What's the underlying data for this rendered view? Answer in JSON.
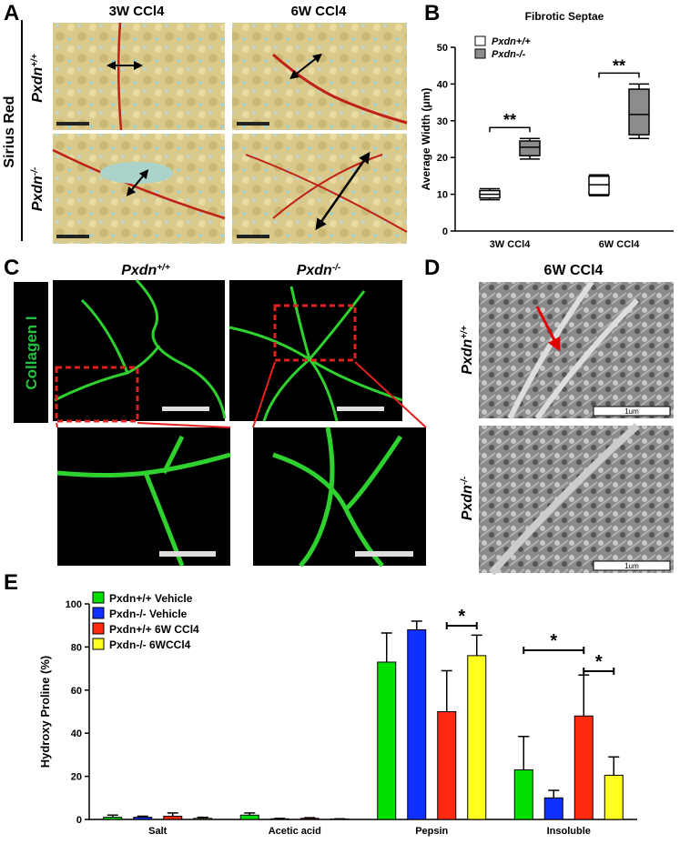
{
  "figure": {
    "panel_labels": [
      "A",
      "B",
      "C",
      "D",
      "E"
    ],
    "a": {
      "col1": "3W CCl4",
      "col2": "6W CCl4",
      "stain": "Sirius Red",
      "row1": {
        "base": "Pxdn",
        "sup": "+/+"
      },
      "row2": {
        "base": "Pxdn",
        "sup": "-/-"
      }
    },
    "c": {
      "stain": "Collagen I",
      "col1": {
        "base": "Pxdn",
        "sup": "+/+"
      },
      "col2": {
        "base": "Pxdn",
        "sup": "-/-"
      }
    },
    "d": {
      "title": "6W CCl4",
      "row1": {
        "base": "Pxdn",
        "sup": "+/+"
      },
      "row2": {
        "base": "Pxdn",
        "sup": "-/-"
      },
      "scale1": "1um",
      "scale2": "1um"
    }
  },
  "chart_data": [
    {
      "type": "box",
      "title": "Fibrotic Septae",
      "y_label": "Average Width (μm)",
      "categories": [
        "3W CCl4",
        "6W CCl4"
      ],
      "series": [
        {
          "name": "Pxdn+/+",
          "color": "#ffffff",
          "values": [
            {
              "min": 8.5,
              "q1": 9,
              "median": 10,
              "q3": 11,
              "max": 11.5
            },
            {
              "min": 9.6,
              "q1": 9.9,
              "median": 12.6,
              "q3": 14.9,
              "max": 15.3
            }
          ]
        },
        {
          "name": "Pxdn-/-",
          "color": "#8c8c8c",
          "values": [
            {
              "min": 19.6,
              "q1": 20.5,
              "median": 22.8,
              "q3": 24.5,
              "max": 25.2
            },
            {
              "min": 25.2,
              "q1": 26.2,
              "median": 31.7,
              "q3": 38.6,
              "max": 40
            }
          ]
        }
      ],
      "annotations": [
        "**",
        "**"
      ],
      "ylim": [
        0,
        50
      ],
      "yticks": [
        0,
        10,
        20,
        30,
        40,
        50
      ]
    },
    {
      "type": "bar",
      "y_label": "Hydroxy Proline (%)",
      "categories": [
        "Salt",
        "Acetic acid",
        "Pepsin",
        "Insoluble"
      ],
      "series": [
        {
          "name": "Pxdn+/+ Vehicle",
          "color": "#00e000",
          "values": [
            1,
            2,
            73,
            23
          ],
          "errors": [
            1,
            1,
            13.5,
            15.5
          ]
        },
        {
          "name": "Pxdn-/- Vehicle",
          "color": "#1030ff",
          "values": [
            1,
            0.3,
            88,
            10
          ],
          "errors": [
            0.5,
            0.2,
            4,
            3.5
          ]
        },
        {
          "name": "Pxdn+/+ 6W CCl4",
          "color": "#ff2a10",
          "values": [
            1.5,
            0.5,
            50,
            48
          ],
          "errors": [
            1.5,
            0.3,
            19,
            19
          ]
        },
        {
          "name": "Pxdn-/- 6WCCl4",
          "color": "#ffff20",
          "values": [
            0.5,
            0.2,
            76,
            20.5
          ],
          "errors": [
            0.5,
            0.1,
            9.5,
            8.5
          ]
        }
      ],
      "annotations": [
        "*",
        "*",
        "*"
      ],
      "ylim": [
        0,
        100
      ],
      "yticks": [
        0,
        20,
        40,
        60,
        80,
        100
      ]
    }
  ]
}
